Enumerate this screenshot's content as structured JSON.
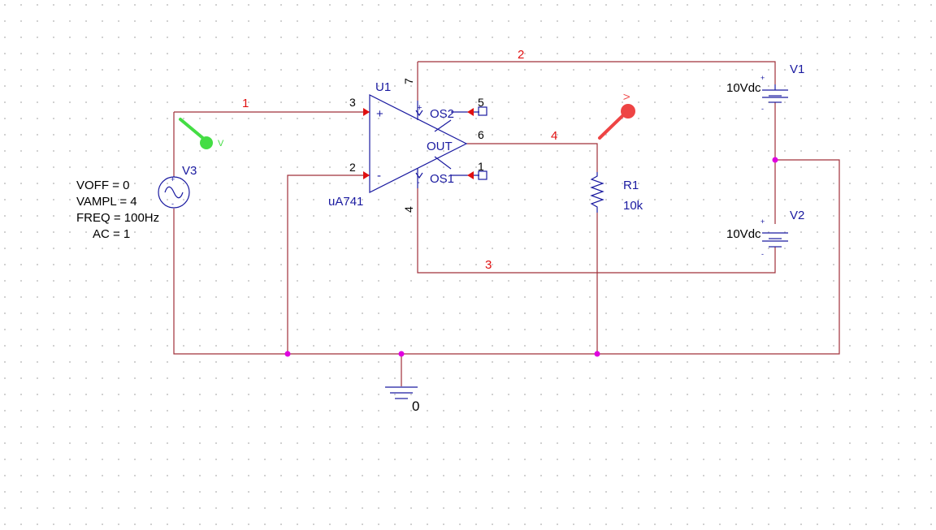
{
  "schematic": {
    "opamp": {
      "ref": "U1",
      "model": "uA741",
      "out_label": "OUT",
      "os1_label": "OS1",
      "os2_label": "OS2",
      "plus_sign": "+",
      "minus_sign": "-"
    },
    "pins": {
      "p3": "3",
      "p2": "2",
      "p7": "7",
      "p4": "4",
      "p6": "6",
      "p5": "5",
      "p1": "1"
    },
    "nets": {
      "n1": "1",
      "n2": "2",
      "n3": "3",
      "n4": "4"
    },
    "v1": {
      "ref": "V1",
      "value": "10Vdc"
    },
    "v2": {
      "ref": "V2",
      "value": "10Vdc"
    },
    "v3": {
      "ref": "V3",
      "voff": "VOFF = 0",
      "vampl": "VAMPL = 4",
      "freq": "FREQ = 100Hz",
      "ac": "AC = 1"
    },
    "r1": {
      "ref": "R1",
      "value": "10k"
    },
    "ground": {
      "label": "0"
    },
    "probe_labels": {
      "green": "V",
      "red": "V"
    }
  },
  "colors": {
    "wire": "#a0303a",
    "part": "#1a1aa0",
    "net_label": "#e01010",
    "junction": "#e000e0",
    "probe_green": "#44dd44",
    "probe_red": "#ee4444"
  }
}
